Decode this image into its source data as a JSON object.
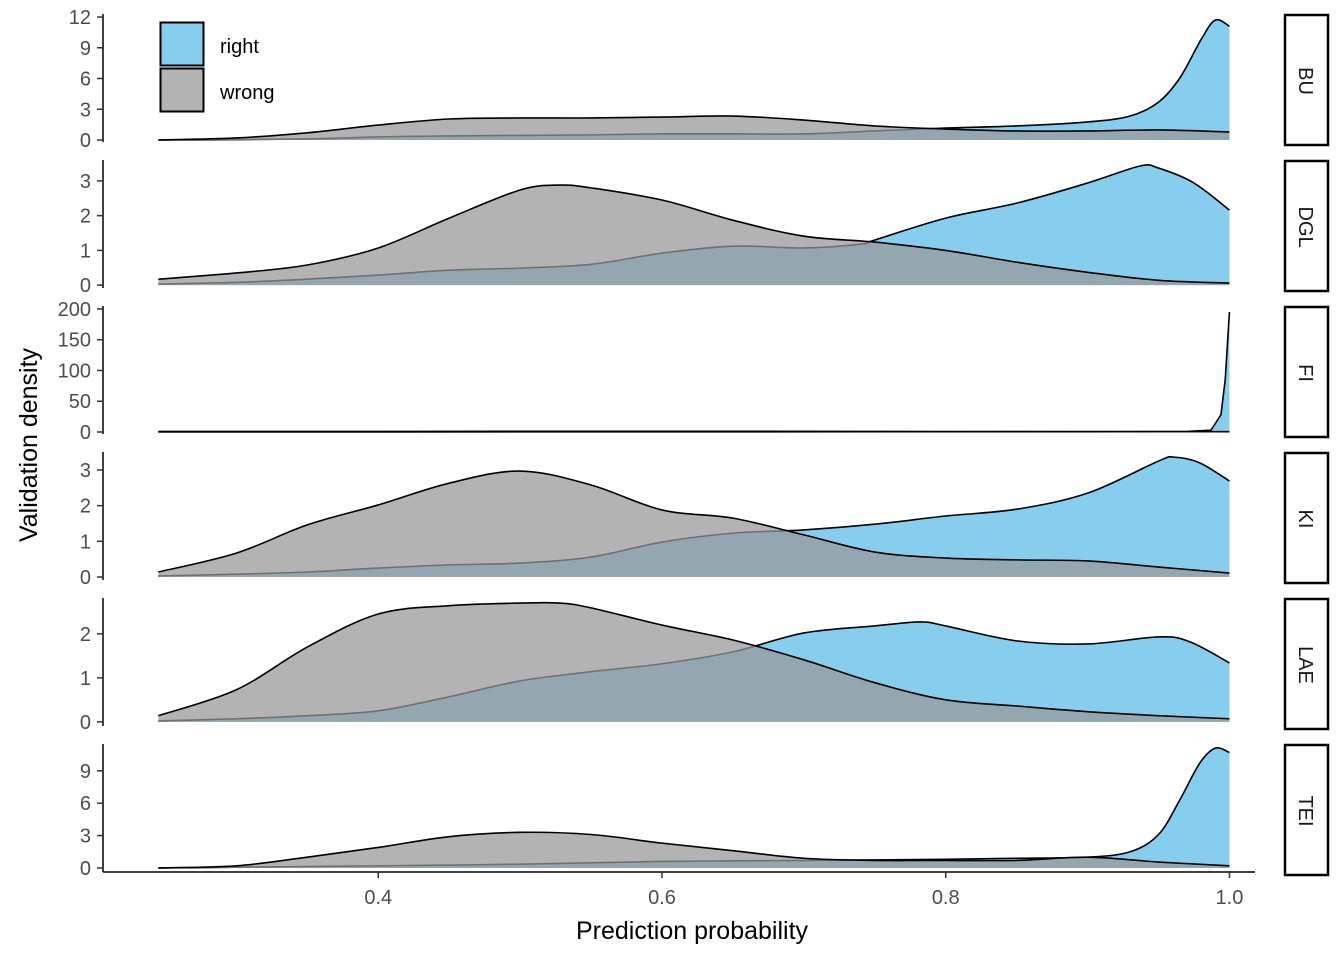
{
  "chart_data": {
    "type": "area",
    "subtype": "faceted density",
    "xlabel": "Prediction probability",
    "ylabel": "Validation density",
    "xlim": [
      0.206,
      1.018
    ],
    "xticks": [
      0.4,
      0.6,
      0.8,
      1.0
    ],
    "xtick_labels": [
      "0.4",
      "0.6",
      "0.8",
      "1.0"
    ],
    "grid": false,
    "legend": {
      "placement": "top-left (inside first panel)",
      "entries": [
        {
          "name": "right",
          "color": "#87CEEE"
        },
        {
          "name": "wrong",
          "color": "#B3B3B3"
        }
      ]
    },
    "overlap_color": "#94A8B0",
    "panels": [
      {
        "label": "BU",
        "ylim": [
          -0.39,
          12.49
        ],
        "yticks": [
          0,
          3,
          6,
          9,
          12
        ],
        "series": [
          {
            "name": "right",
            "x": [
              0.245,
              0.35,
              0.4,
              0.45,
              0.55,
              0.6,
              0.65,
              0.7,
              0.75,
              0.8,
              0.85,
              0.9,
              0.93,
              0.95,
              0.965,
              0.98,
              0.99,
              1.0
            ],
            "y": [
              0,
              0.1,
              0.3,
              0.4,
              0.5,
              0.6,
              0.6,
              0.6,
              0.88,
              1.17,
              1.37,
              1.76,
              2.34,
              3.7,
              6.05,
              9.8,
              11.7,
              11.1
            ]
          },
          {
            "name": "wrong",
            "x": [
              0.245,
              0.3,
              0.35,
              0.4,
              0.45,
              0.5,
              0.55,
              0.6,
              0.65,
              0.7,
              0.75,
              0.8,
              0.85,
              0.9,
              0.95,
              1.0
            ],
            "y": [
              0,
              0.2,
              0.7,
              1.46,
              2.05,
              2.15,
              2.15,
              2.24,
              2.34,
              1.95,
              1.37,
              1.07,
              0.88,
              0.88,
              0.98,
              0.78
            ]
          }
        ]
      },
      {
        "label": "DGL",
        "ylim": [
          -0.14,
          3.66
        ],
        "yticks": [
          0,
          1,
          2,
          3
        ],
        "series": [
          {
            "name": "right",
            "x": [
              0.245,
              0.3,
              0.35,
              0.4,
              0.45,
              0.5,
              0.55,
              0.6,
              0.65,
              0.7,
              0.74,
              0.75,
              0.8,
              0.85,
              0.9,
              0.937,
              0.95,
              0.975,
              1.0
            ],
            "y": [
              0.03,
              0.08,
              0.17,
              0.29,
              0.43,
              0.49,
              0.6,
              0.92,
              1.12,
              1.07,
              1.18,
              1.3,
              1.93,
              2.36,
              2.94,
              3.43,
              3.37,
              2.94,
              2.16
            ]
          },
          {
            "name": "wrong",
            "x": [
              0.245,
              0.3,
              0.35,
              0.4,
              0.45,
              0.5,
              0.528,
              0.55,
              0.6,
              0.65,
              0.7,
              0.75,
              0.8,
              0.85,
              0.9,
              0.95,
              1.0
            ],
            "y": [
              0.17,
              0.35,
              0.58,
              1.07,
              1.93,
              2.74,
              2.88,
              2.8,
              2.45,
              1.87,
              1.41,
              1.24,
              1.0,
              0.66,
              0.37,
              0.14,
              0.06
            ]
          }
        ]
      },
      {
        "label": "FI",
        "ylim": [
          -6.5,
          208
        ],
        "yticks": [
          0,
          50,
          100,
          150,
          200
        ],
        "series": [
          {
            "name": "right",
            "x": [
              0.245,
              0.6,
              0.9,
              0.97,
              0.987,
              0.994,
              0.997,
              1.0
            ],
            "y": [
              0,
              0.3,
              0.5,
              1,
              3,
              28,
              85,
              195
            ]
          },
          {
            "name": "wrong",
            "x": [
              0.245,
              0.4,
              0.6,
              0.8,
              1.0
            ],
            "y": [
              1,
              1,
              1.2,
              0.8,
              0.5
            ]
          }
        ]
      },
      {
        "label": "KI",
        "ylim": [
          -0.14,
          3.56
        ],
        "yticks": [
          0,
          1,
          2,
          3
        ],
        "series": [
          {
            "name": "right",
            "x": [
              0.245,
              0.3,
              0.35,
              0.4,
              0.45,
              0.5,
              0.55,
              0.6,
              0.65,
              0.7,
              0.75,
              0.8,
              0.85,
              0.9,
              0.95,
              0.961,
              0.979,
              1.0
            ],
            "y": [
              0.03,
              0.08,
              0.14,
              0.25,
              0.34,
              0.39,
              0.56,
              0.98,
              1.23,
              1.32,
              1.48,
              1.71,
              1.9,
              2.35,
              3.25,
              3.36,
              3.2,
              2.69
            ]
          },
          {
            "name": "wrong",
            "x": [
              0.245,
              0.3,
              0.35,
              0.4,
              0.45,
              0.5,
              0.55,
              0.6,
              0.65,
              0.7,
              0.75,
              0.8,
              0.85,
              0.9,
              0.95,
              1.0
            ],
            "y": [
              0.14,
              0.67,
              1.46,
              2.02,
              2.63,
              2.97,
              2.58,
              1.88,
              1.65,
              1.18,
              0.7,
              0.53,
              0.48,
              0.45,
              0.28,
              0.11
            ]
          }
        ]
      },
      {
        "label": "LAE",
        "ylim": [
          -0.14,
          2.86
        ],
        "yticks": [
          0,
          1,
          2
        ],
        "series": [
          {
            "name": "right",
            "x": [
              0.245,
              0.3,
              0.35,
              0.4,
              0.45,
              0.5,
              0.55,
              0.6,
              0.65,
              0.7,
              0.75,
              0.782,
              0.8,
              0.85,
              0.9,
              0.95,
              0.972,
              1.0
            ],
            "y": [
              0.02,
              0.07,
              0.14,
              0.25,
              0.57,
              0.93,
              1.14,
              1.32,
              1.59,
              2.02,
              2.18,
              2.27,
              2.18,
              1.84,
              1.77,
              1.93,
              1.82,
              1.34
            ]
          },
          {
            "name": "wrong",
            "x": [
              0.245,
              0.3,
              0.35,
              0.4,
              0.45,
              0.5,
              0.528,
              0.55,
              0.6,
              0.65,
              0.7,
              0.75,
              0.8,
              0.85,
              0.9,
              0.95,
              1.0
            ],
            "y": [
              0.14,
              0.73,
              1.7,
              2.45,
              2.64,
              2.7,
              2.7,
              2.59,
              2.2,
              1.86,
              1.41,
              0.89,
              0.5,
              0.36,
              0.23,
              0.14,
              0.07
            ]
          }
        ]
      },
      {
        "label": "TEI",
        "ylim": [
          -0.56,
          11.67
        ],
        "yticks": [
          0,
          3,
          6,
          9
        ],
        "series": [
          {
            "name": "right",
            "x": [
              0.245,
              0.4,
              0.5,
              0.6,
              0.7,
              0.8,
              0.85,
              0.9,
              0.93,
              0.95,
              0.965,
              0.979,
              0.99,
              1.0
            ],
            "y": [
              0,
              0.2,
              0.35,
              0.6,
              0.7,
              0.8,
              0.9,
              1.0,
              1.5,
              3.1,
              6.3,
              9.7,
              11.1,
              10.7
            ]
          },
          {
            "name": "wrong",
            "x": [
              0.245,
              0.3,
              0.35,
              0.4,
              0.45,
              0.5,
              0.55,
              0.6,
              0.65,
              0.7,
              0.75,
              0.8,
              0.85,
              0.9,
              0.95,
              1.0
            ],
            "y": [
              0,
              0.2,
              1.0,
              1.9,
              2.9,
              3.3,
              3.1,
              2.3,
              1.6,
              0.9,
              0.7,
              0.7,
              0.7,
              1.0,
              0.55,
              0.2
            ]
          }
        ]
      }
    ]
  }
}
